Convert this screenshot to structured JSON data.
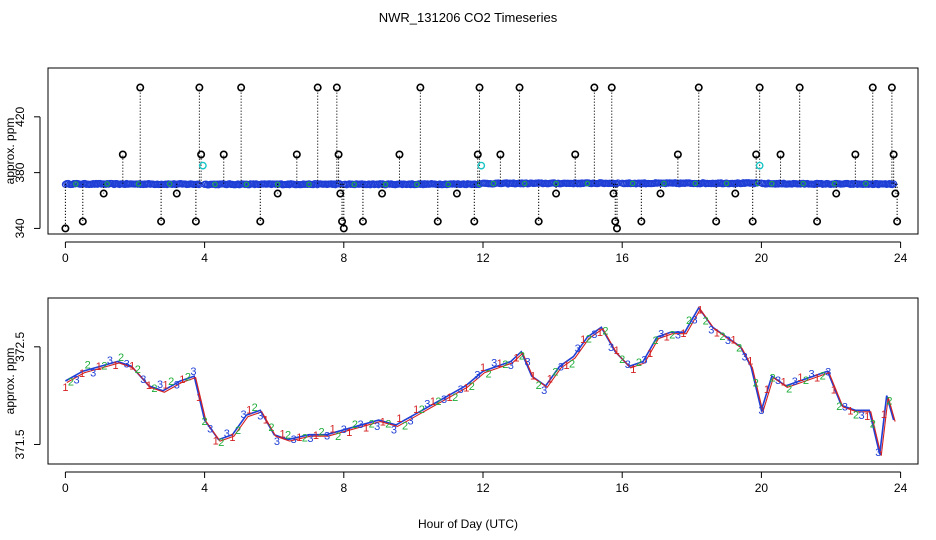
{
  "title": "NWR_131206  CO2 Timeseries",
  "xlabel": "Hour of Day (UTC)",
  "colors": {
    "blue": "#1f3fd6",
    "cyan": "#16c4c4",
    "green": "#1fae3a",
    "red": "#d42020",
    "black": "#000000"
  },
  "chart_data": [
    {
      "type": "scatter",
      "panel": "top",
      "ylabel": "approx. ppm",
      "xlim": [
        -0.5,
        24.5
      ],
      "ylim": [
        336,
        455
      ],
      "x_ticks": [
        0,
        4,
        8,
        12,
        16,
        20,
        24
      ],
      "y_ticks": [
        340,
        380,
        420
      ],
      "series": [
        {
          "name": "baseline (blue circles)",
          "segments": [
            {
              "x0": 0.0,
              "x1": 3.85,
              "y0": 371.9,
              "y1": 371.7
            },
            {
              "x0": 4.0,
              "x1": 7.9,
              "y0": 371.6,
              "y1": 371.7
            },
            {
              "x0": 8.0,
              "x1": 11.95,
              "y0": 371.6,
              "y1": 371.8
            },
            {
              "x0": 12.0,
              "x1": 15.9,
              "y0": 372.2,
              "y1": 372.4
            },
            {
              "x0": 16.0,
              "x1": 19.9,
              "y0": 372.3,
              "y1": 372.4
            },
            {
              "x0": 20.0,
              "x1": 23.8,
              "y0": 372.1,
              "y1": 371.7
            }
          ]
        },
        {
          "name": "spike markers (black circles)",
          "points": [
            [
              0.0,
              340
            ],
            [
              0.5,
              345
            ],
            [
              1.1,
              365
            ],
            [
              1.65,
              393
            ],
            [
              2.15,
              441
            ],
            [
              2.75,
              345
            ],
            [
              3.2,
              365
            ],
            [
              3.75,
              345
            ],
            [
              3.85,
              441
            ],
            [
              3.9,
              393
            ],
            [
              4.55,
              393
            ],
            [
              5.05,
              441
            ],
            [
              5.6,
              345
            ],
            [
              6.1,
              365
            ],
            [
              6.65,
              393
            ],
            [
              7.25,
              441
            ],
            [
              7.8,
              441
            ],
            [
              7.85,
              393
            ],
            [
              7.9,
              365
            ],
            [
              7.95,
              345
            ],
            [
              8.0,
              340
            ],
            [
              8.55,
              345
            ],
            [
              9.1,
              365
            ],
            [
              9.6,
              393
            ],
            [
              10.2,
              441
            ],
            [
              10.7,
              345
            ],
            [
              11.25,
              365
            ],
            [
              11.75,
              345
            ],
            [
              11.85,
              393
            ],
            [
              11.9,
              441
            ],
            [
              12.5,
              393
            ],
            [
              13.05,
              441
            ],
            [
              13.6,
              345
            ],
            [
              14.1,
              365
            ],
            [
              14.65,
              393
            ],
            [
              15.2,
              441
            ],
            [
              15.7,
              441
            ],
            [
              15.75,
              365
            ],
            [
              15.8,
              345
            ],
            [
              15.85,
              340
            ],
            [
              16.55,
              345
            ],
            [
              17.1,
              365
            ],
            [
              17.6,
              393
            ],
            [
              18.2,
              441
            ],
            [
              18.7,
              345
            ],
            [
              19.25,
              365
            ],
            [
              19.75,
              345
            ],
            [
              19.85,
              393
            ],
            [
              19.95,
              441
            ],
            [
              20.55,
              393
            ],
            [
              21.1,
              441
            ],
            [
              21.6,
              345
            ],
            [
              22.15,
              365
            ],
            [
              22.7,
              393
            ],
            [
              23.2,
              441
            ],
            [
              23.75,
              441
            ],
            [
              23.8,
              393
            ],
            [
              23.85,
              365
            ],
            [
              23.9,
              345
            ]
          ]
        },
        {
          "name": "flagged (cyan circles)",
          "points": [
            [
              3.95,
              385
            ],
            [
              11.95,
              385
            ],
            [
              19.95,
              385
            ]
          ]
        }
      ]
    },
    {
      "type": "line",
      "panel": "bottom",
      "ylabel": "approx. ppm",
      "xlim": [
        -0.5,
        24.5
      ],
      "ylim": [
        371.3,
        373.0
      ],
      "x_ticks": [
        0,
        4,
        8,
        12,
        16,
        20,
        24
      ],
      "y_ticks": [
        371.5,
        372.5
      ],
      "series": [
        {
          "name": "CO2",
          "x": [
            0.0,
            0.5,
            1.0,
            1.5,
            1.9,
            2.4,
            2.8,
            3.3,
            3.7,
            4.0,
            4.4,
            4.8,
            5.2,
            5.6,
            6.0,
            6.4,
            7.0,
            7.5,
            8.0,
            8.5,
            9.0,
            9.5,
            10.0,
            10.5,
            11.0,
            11.5,
            12.0,
            12.4,
            12.8,
            13.1,
            13.4,
            13.8,
            14.2,
            14.6,
            15.0,
            15.4,
            15.8,
            16.2,
            16.6,
            17.0,
            17.4,
            17.8,
            18.2,
            18.6,
            19.0,
            19.4,
            19.7,
            20.0,
            20.3,
            20.7,
            21.1,
            21.5,
            21.9,
            22.3,
            22.7,
            23.1,
            23.4,
            23.6,
            23.8
          ],
          "y": [
            372.15,
            372.25,
            372.3,
            372.35,
            372.3,
            372.1,
            372.05,
            372.15,
            372.2,
            371.75,
            371.55,
            371.6,
            371.8,
            371.85,
            371.6,
            371.55,
            371.6,
            371.6,
            371.65,
            371.7,
            371.75,
            371.7,
            371.8,
            371.9,
            372.0,
            372.1,
            372.25,
            372.3,
            372.35,
            372.45,
            372.2,
            372.1,
            372.3,
            372.4,
            372.6,
            372.7,
            372.45,
            372.3,
            372.35,
            372.6,
            372.65,
            372.65,
            372.9,
            372.7,
            372.6,
            372.5,
            372.3,
            371.85,
            372.2,
            372.1,
            372.15,
            372.2,
            372.25,
            371.9,
            371.85,
            371.85,
            371.4,
            372.0,
            371.75
          ]
        },
        {
          "name": "marker labels",
          "labels": [
            "1",
            "2",
            "3"
          ],
          "label_colors": [
            "red",
            "green",
            "blue"
          ]
        }
      ]
    }
  ]
}
